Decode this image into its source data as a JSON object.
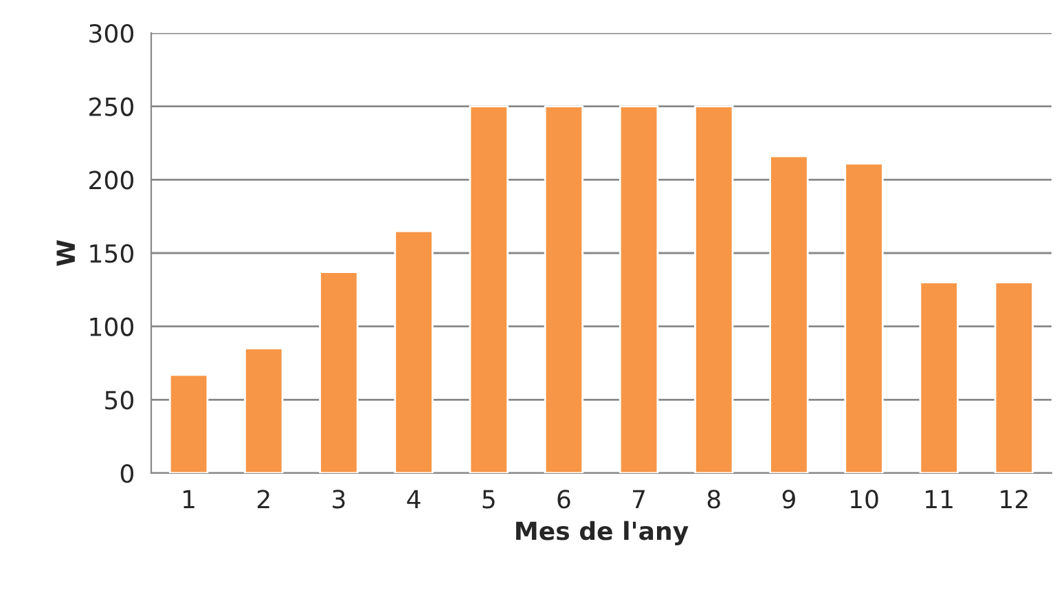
{
  "chart_data": {
    "type": "bar",
    "xlabel": "Mes de l'any",
    "ylabel": "W",
    "categories": [
      "1",
      "2",
      "3",
      "4",
      "5",
      "6",
      "7",
      "8",
      "9",
      "10",
      "11",
      "12"
    ],
    "values": [
      67,
      85,
      137,
      165,
      250,
      250,
      250,
      250,
      216,
      211,
      130,
      130
    ],
    "color": "#f79646",
    "ylim": [
      0,
      300
    ],
    "yticks": [
      0,
      50,
      100,
      150,
      200,
      250,
      300
    ],
    "grid": "y",
    "legend": false
  }
}
